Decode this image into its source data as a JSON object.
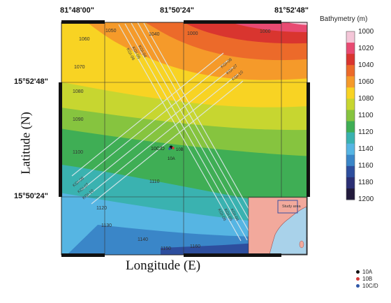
{
  "map": {
    "x_ticks": [
      "81°48'00\"",
      "81°50'24\"",
      "81°52'48\""
    ],
    "y_ticks": [
      "15°52'48\"",
      "15°50'24\""
    ],
    "xlabel": "Longitude (E)",
    "ylabel": "Latitude (N)",
    "inset_label": "Study area",
    "site_label": "10C/D",
    "site_label_a": "10A",
    "site_label_b": "10B",
    "contour_labels": [
      "1000",
      "1020",
      "1040",
      "1050",
      "1060",
      "1070",
      "1080",
      "1090",
      "1100",
      "1110",
      "1120",
      "1130",
      "1140",
      "1150",
      "1160"
    ],
    "track_labels": [
      "KGI-06",
      "KGI-05",
      "KGI-04",
      "KGI-08",
      "KGI-07",
      "KGI-10"
    ]
  },
  "colorbar": {
    "title": "Bathymetry (m)",
    "labels": [
      "1000",
      "1020",
      "1040",
      "1060",
      "1080",
      "1100",
      "1120",
      "1140",
      "1160",
      "1180",
      "1200"
    ],
    "colors": [
      "#f4c6d8",
      "#e84a72",
      "#d9352f",
      "#ec6a2a",
      "#f59a2a",
      "#f8d323",
      "#c7d630",
      "#86c43f",
      "#3fae55",
      "#3ab2b0",
      "#56b5e3",
      "#3a86c8",
      "#2d4e9e",
      "#2b2f74",
      "#221a3c"
    ]
  },
  "legend": {
    "items": [
      {
        "label": "10A",
        "color": "#111111"
      },
      {
        "label": "10B",
        "color": "#d33a3a"
      },
      {
        "label": "10C/D",
        "color": "#2f57a7"
      }
    ]
  }
}
